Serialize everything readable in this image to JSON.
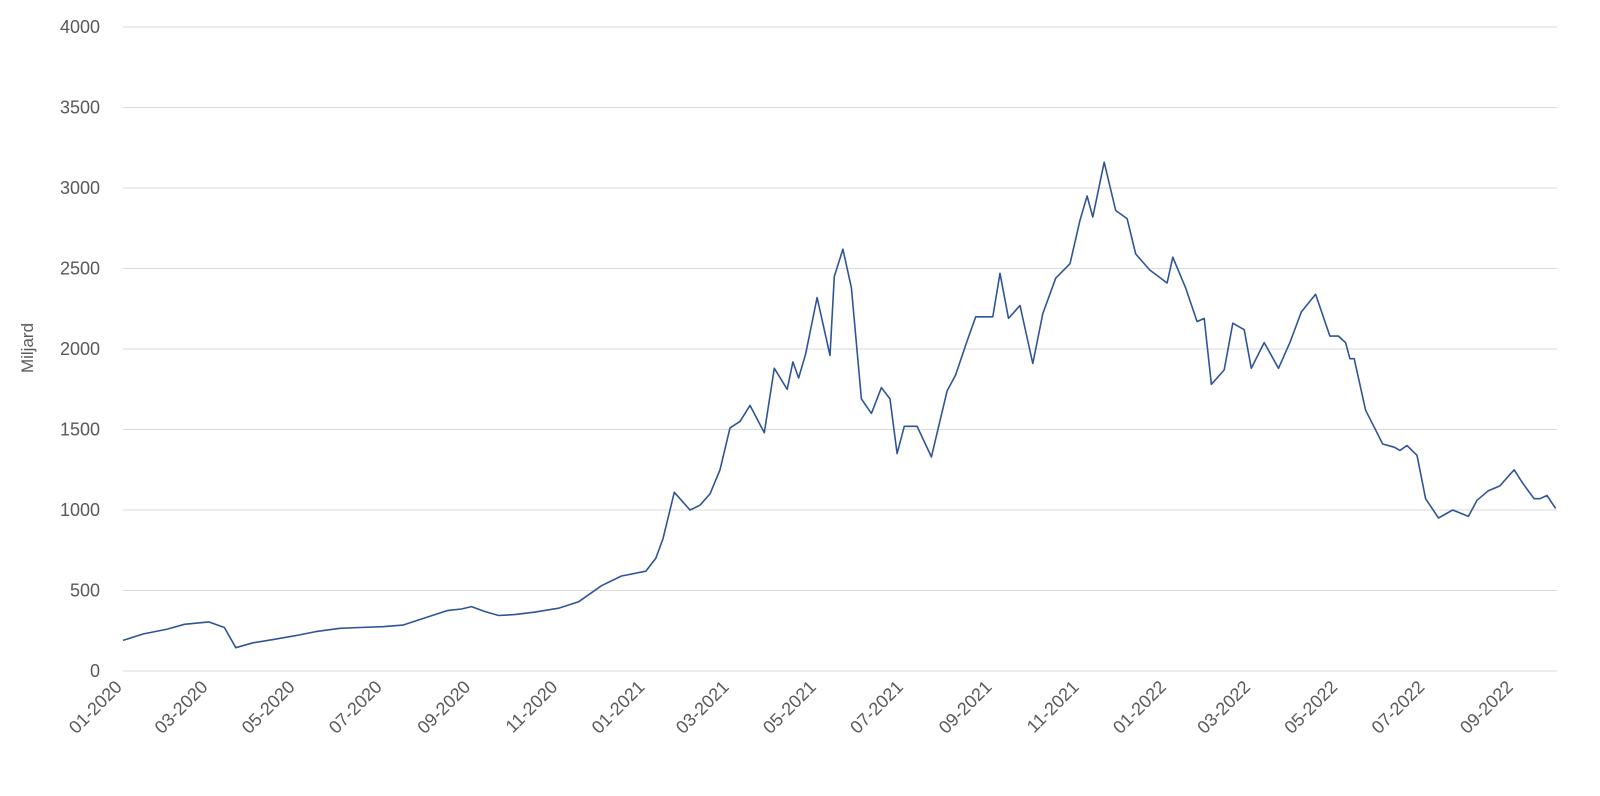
{
  "chart_data": {
    "type": "line",
    "title": "",
    "xlabel": "",
    "ylabel": "Miljard",
    "ylim": [
      0,
      4000
    ],
    "yticks": [
      "0",
      "500",
      "1000",
      "1500",
      "2000",
      "2500",
      "3000",
      "3500",
      "4000"
    ],
    "xticks": [
      "01-2020",
      "03-2020",
      "05-2020",
      "07-2020",
      "09-2020",
      "11-2020",
      "01-2021",
      "03-2021",
      "05-2021",
      "07-2021",
      "09-2021",
      "11-2021",
      "01-2022",
      "03-2022",
      "05-2022",
      "07-2022",
      "09-2022"
    ],
    "xlim": [
      "2020-01-01",
      "2022-10-01"
    ],
    "grid": true,
    "legend": "none",
    "colors": {
      "line": "#2f5597",
      "grid": "#d9d9d9",
      "text": "#595959"
    },
    "series": [
      {
        "name": "",
        "x": [
          "2020-01-01",
          "2020-01-15",
          "2020-02-01",
          "2020-02-13",
          "2020-03-01",
          "2020-03-12",
          "2020-03-20",
          "2020-04-01",
          "2020-04-15",
          "2020-05-01",
          "2020-05-15",
          "2020-06-01",
          "2020-06-15",
          "2020-07-01",
          "2020-07-15",
          "2020-08-01",
          "2020-08-15",
          "2020-08-25",
          "2020-09-01",
          "2020-09-10",
          "2020-09-20",
          "2020-10-01",
          "2020-10-15",
          "2020-11-01",
          "2020-11-15",
          "2020-12-01",
          "2020-12-15",
          "2021-01-01",
          "2021-01-08",
          "2021-01-13",
          "2021-01-21",
          "2021-02-01",
          "2021-02-08",
          "2021-02-15",
          "2021-02-22",
          "2021-03-01",
          "2021-03-08",
          "2021-03-15",
          "2021-03-25",
          "2021-04-01",
          "2021-04-10",
          "2021-04-14",
          "2021-04-18",
          "2021-04-23",
          "2021-05-01",
          "2021-05-10",
          "2021-05-13",
          "2021-05-19",
          "2021-05-25",
          "2021-06-01",
          "2021-06-08",
          "2021-06-15",
          "2021-06-21",
          "2021-06-26",
          "2021-07-01",
          "2021-07-10",
          "2021-07-20",
          "2021-07-31",
          "2021-08-06",
          "2021-08-14",
          "2021-08-20",
          "2021-09-01",
          "2021-09-06",
          "2021-09-12",
          "2021-09-20",
          "2021-09-29",
          "2021-10-06",
          "2021-10-15",
          "2021-10-25",
          "2021-11-01",
          "2021-11-06",
          "2021-11-10",
          "2021-11-18",
          "2021-11-26",
          "2021-12-04",
          "2021-12-10",
          "2021-12-20",
          "2022-01-01",
          "2022-01-05",
          "2022-01-14",
          "2022-01-22",
          "2022-01-27",
          "2022-02-01",
          "2022-02-10",
          "2022-02-16",
          "2022-02-24",
          "2022-03-01",
          "2022-03-10",
          "2022-03-20",
          "2022-03-28",
          "2022-04-05",
          "2022-04-15",
          "2022-04-25",
          "2022-05-01",
          "2022-05-06",
          "2022-05-09",
          "2022-05-12",
          "2022-05-20",
          "2022-06-01",
          "2022-06-09",
          "2022-06-13",
          "2022-06-18",
          "2022-06-25",
          "2022-07-01",
          "2022-07-10",
          "2022-07-20",
          "2022-07-31",
          "2022-08-06",
          "2022-08-14",
          "2022-08-22",
          "2022-08-28",
          "2022-09-01",
          "2022-09-06",
          "2022-09-10",
          "2022-09-15",
          "2022-09-19",
          "2022-09-24",
          "2022-09-30"
        ],
        "values": [
          190,
          230,
          260,
          290,
          305,
          270,
          145,
          175,
          195,
          220,
          245,
          265,
          270,
          275,
          285,
          335,
          375,
          385,
          400,
          370,
          345,
          350,
          365,
          390,
          430,
          530,
          590,
          620,
          700,
          820,
          1110,
          1000,
          1030,
          1100,
          1250,
          1510,
          1550,
          1650,
          1480,
          1880,
          1750,
          1920,
          1820,
          1970,
          2320,
          1960,
          2450,
          2620,
          2380,
          1690,
          1600,
          1760,
          1690,
          1350,
          1520,
          1520,
          1330,
          1740,
          1840,
          2050,
          2200,
          2200,
          2470,
          2190,
          2270,
          1910,
          2220,
          2440,
          2530,
          2800,
          2950,
          2820,
          3160,
          2860,
          2810,
          2590,
          2490,
          2410,
          2570,
          2380,
          2170,
          2190,
          1780,
          1870,
          2160,
          2120,
          1880,
          2040,
          1880,
          2040,
          2230,
          2340,
          2080,
          2080,
          2040,
          1940,
          1940,
          1620,
          1410,
          1390,
          1370,
          1400,
          1340,
          1070,
          950,
          1000,
          960,
          1060,
          1120,
          1150,
          1210,
          1250,
          1180,
          1130,
          1070,
          1070,
          1090,
          1010
        ]
      }
    ]
  }
}
